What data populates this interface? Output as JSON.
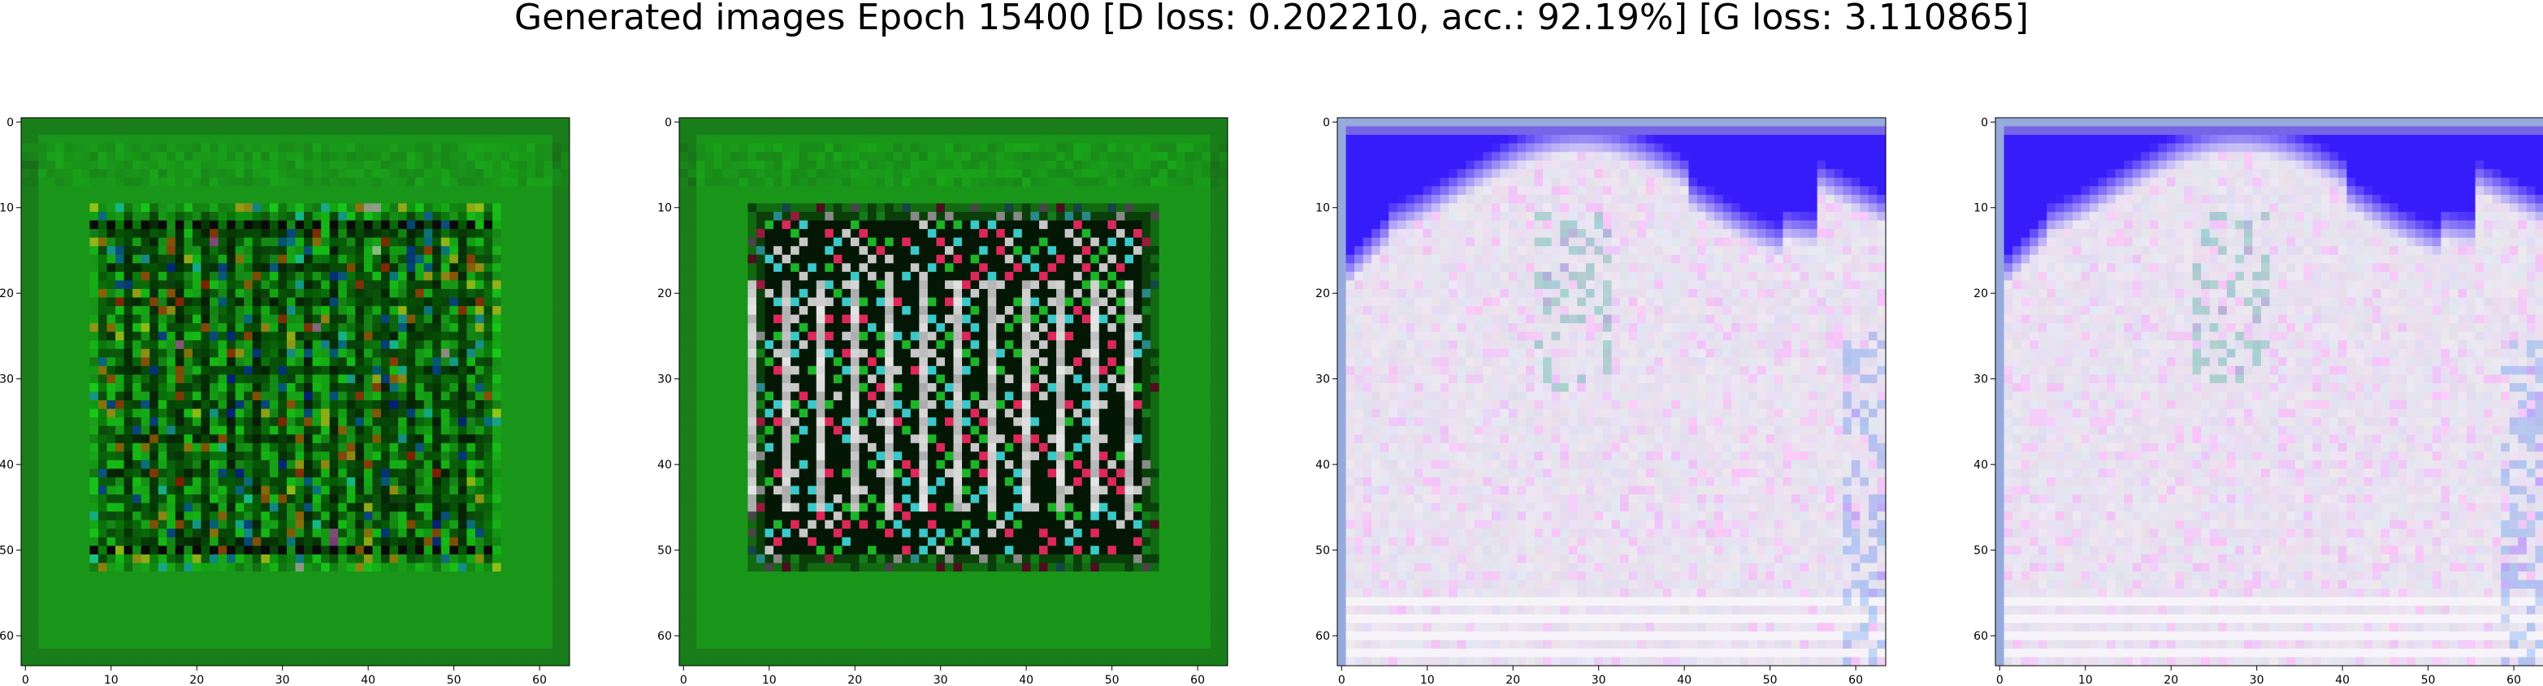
{
  "figure": {
    "title": "Generated images Epoch 15400 [D loss: 0.202210, acc.: 92.19%] [G loss: 3.110865]"
  },
  "axes_ticks": {
    "x": [
      "0",
      "10",
      "20",
      "30",
      "40",
      "50",
      "60"
    ],
    "y": [
      "0",
      "10",
      "20",
      "30",
      "40",
      "50",
      "60"
    ],
    "range": [
      0,
      64
    ]
  },
  "panels": [
    {
      "name": "green-pattern-sample-1",
      "palette": "green",
      "colors": {
        "base": "#1e9e1e",
        "dark": "#0a2a0a"
      }
    },
    {
      "name": "green-pattern-sample-2",
      "palette": "green-checker",
      "colors": {
        "base": "#1e9e1e",
        "dark": "#0d1a0d"
      }
    },
    {
      "name": "blue-white-sample-1",
      "palette": "blue-white",
      "colors": {
        "sky": "#3a1fff",
        "body": "#ece6f4"
      }
    },
    {
      "name": "blue-white-sample-2",
      "palette": "blue-white",
      "colors": {
        "sky": "#3a1fff",
        "body": "#ece6f4"
      }
    }
  ]
}
